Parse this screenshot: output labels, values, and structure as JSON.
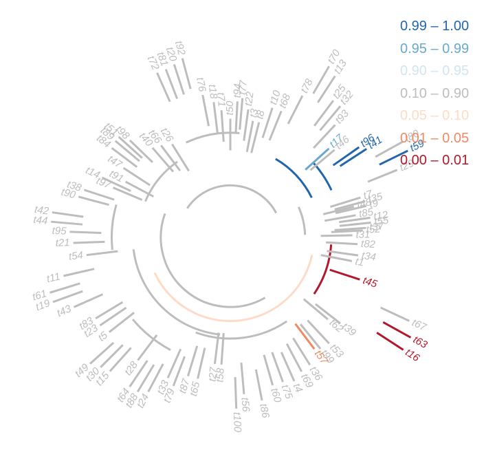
{
  "colors": {
    "c1": "#2166ac",
    "c2": "#67a9cf",
    "c3": "#d1e5f0",
    "c4": "#bdbdbd",
    "c5": "#fddbc7",
    "c6": "#ef8a62",
    "c7": "#b2182b"
  },
  "legend": [
    {
      "label": "0.99 – 1.00",
      "color": "#2166ac"
    },
    {
      "label": "0.95 – 0.99",
      "color": "#67a9cf"
    },
    {
      "label": "0.90 – 0.95",
      "color": "#d1e5f0"
    },
    {
      "label": "0.10 – 0.90",
      "color": "#bdbdbd"
    },
    {
      "label": "0.05 – 0.10",
      "color": "#fddbc7"
    },
    {
      "label": "0.01 – 0.05",
      "color": "#ef8a62"
    },
    {
      "label": "0.00 – 0.01",
      "color": "#b2182b"
    }
  ],
  "tips": [
    {
      "id": "t82",
      "angle": 3,
      "depth": 0.55,
      "color": "c4"
    },
    {
      "id": "t34",
      "angle": 8,
      "depth": 0.56,
      "color": "c4"
    },
    {
      "id": "t1",
      "angle": 11,
      "depth": 0.53,
      "color": "c4"
    },
    {
      "id": "t45",
      "angle": 18,
      "depth": 0.6,
      "color": "c7"
    },
    {
      "id": "t67",
      "angle": 25,
      "depth": 0.95,
      "color": "c4"
    },
    {
      "id": "t63",
      "angle": 29,
      "depth": 1.0,
      "color": "c7"
    },
    {
      "id": "t16",
      "angle": 33,
      "depth": 1.0,
      "color": "c7"
    },
    {
      "id": "t62",
      "angle": 40,
      "depth": 0.55,
      "color": "c4"
    },
    {
      "id": "t39",
      "angle": 38,
      "depth": 0.62,
      "color": "c4"
    },
    {
      "id": "t53",
      "angle": 47,
      "depth": 0.65,
      "color": "c4"
    },
    {
      "id": "t99",
      "angle": 51,
      "depth": 0.64,
      "color": "c4"
    },
    {
      "id": "t57",
      "angle": 53,
      "depth": 0.62,
      "color": "c6"
    },
    {
      "id": "t36",
      "angle": 58,
      "depth": 0.68,
      "color": "c4"
    },
    {
      "id": "t69",
      "angle": 62,
      "depth": 0.69,
      "color": "c4"
    },
    {
      "id": "t4",
      "angle": 66,
      "depth": 0.72,
      "color": "c4"
    },
    {
      "id": "t75",
      "angle": 70,
      "depth": 0.7,
      "color": "c4"
    },
    {
      "id": "t60",
      "angle": 74,
      "depth": 0.7,
      "color": "c4"
    },
    {
      "id": "t86",
      "angle": 79,
      "depth": 0.77,
      "color": "c4"
    },
    {
      "id": "t56",
      "angle": 85,
      "depth": 0.72,
      "color": "c4"
    },
    {
      "id": "t100",
      "angle": 88,
      "depth": 0.8,
      "color": "c4"
    },
    {
      "id": "t58",
      "angle": 94,
      "depth": 0.55,
      "color": "c4"
    },
    {
      "id": "t27",
      "angle": 97,
      "depth": 0.55,
      "color": "c4"
    },
    {
      "id": "t65",
      "angle": 103,
      "depth": 0.65,
      "color": "c4"
    },
    {
      "id": "t87",
      "angle": 107,
      "depth": 0.65,
      "color": "c4"
    },
    {
      "id": "t79",
      "angle": 111,
      "depth": 0.73,
      "color": "c4"
    },
    {
      "id": "t33",
      "angle": 114,
      "depth": 0.7,
      "color": "c4"
    },
    {
      "id": "t24",
      "angle": 118,
      "depth": 0.82,
      "color": "c4"
    },
    {
      "id": "t88",
      "angle": 121,
      "depth": 0.85,
      "color": "c4"
    },
    {
      "id": "t64",
      "angle": 124,
      "depth": 0.85,
      "color": "c4"
    },
    {
      "id": "t28",
      "angle": 127,
      "depth": 0.7,
      "color": "c4"
    },
    {
      "id": "t15",
      "angle": 132,
      "depth": 0.85,
      "color": "c4"
    },
    {
      "id": "t30",
      "angle": 135,
      "depth": 0.87,
      "color": "c4"
    },
    {
      "id": "t49",
      "angle": 138,
      "depth": 0.9,
      "color": "c4"
    },
    {
      "id": "t5",
      "angle": 142,
      "depth": 0.7,
      "color": "c4"
    },
    {
      "id": "t23",
      "angle": 146,
      "depth": 0.72,
      "color": "c4"
    },
    {
      "id": "t83",
      "angle": 149,
      "depth": 0.72,
      "color": "c4"
    },
    {
      "id": "t43",
      "angle": 156,
      "depth": 0.8,
      "color": "c4"
    },
    {
      "id": "t19",
      "angle": 160,
      "depth": 0.9,
      "color": "c4"
    },
    {
      "id": "t61",
      "angle": 163,
      "depth": 0.9,
      "color": "c4"
    },
    {
      "id": "t11",
      "angle": 167,
      "depth": 0.8,
      "color": "c4"
    },
    {
      "id": "t54",
      "angle": 173,
      "depth": 0.65,
      "color": "c4"
    },
    {
      "id": "t21",
      "angle": 178,
      "depth": 0.72,
      "color": "c4"
    },
    {
      "id": "t95",
      "angle": 182,
      "depth": 0.74,
      "color": "c4"
    },
    {
      "id": "t44",
      "angle": 185,
      "depth": 0.85,
      "color": "c4"
    },
    {
      "id": "t42",
      "angle": 188,
      "depth": 0.85,
      "color": "c4"
    },
    {
      "id": "t90",
      "angle": 195,
      "depth": 0.72,
      "color": "c4"
    },
    {
      "id": "t38",
      "angle": 198,
      "depth": 0.7,
      "color": "c4"
    },
    {
      "id": "t97",
      "angle": 203,
      "depth": 0.55,
      "color": "c4"
    },
    {
      "id": "t14",
      "angle": 205,
      "depth": 0.63,
      "color": "c4"
    },
    {
      "id": "t91",
      "angle": 208,
      "depth": 0.5,
      "color": "c4"
    },
    {
      "id": "t47",
      "angle": 213,
      "depth": 0.55,
      "color": "c4"
    },
    {
      "id": "t84",
      "angle": 217,
      "depth": 0.67,
      "color": "c4"
    },
    {
      "id": "t89",
      "angle": 220,
      "depth": 0.68,
      "color": "c4"
    },
    {
      "id": "t51",
      "angle": 222,
      "depth": 0.68,
      "color": "c4"
    },
    {
      "id": "t98",
      "angle": 224,
      "depth": 0.62,
      "color": "c4"
    },
    {
      "id": "t40",
      "angle": 229,
      "depth": 0.5,
      "color": "c4"
    },
    {
      "id": "t66",
      "angle": 233,
      "depth": 0.48,
      "color": "c4"
    },
    {
      "id": "t26",
      "angle": 238,
      "depth": 0.45,
      "color": "c4"
    },
    {
      "id": "t72",
      "angle": 246,
      "depth": 0.85,
      "color": "c4"
    },
    {
      "id": "t81",
      "angle": 249,
      "depth": 0.85,
      "color": "c4"
    },
    {
      "id": "t20",
      "angle": 252,
      "depth": 0.86,
      "color": "c4"
    },
    {
      "id": "t92",
      "angle": 255,
      "depth": 0.88,
      "color": "c4"
    },
    {
      "id": "t76",
      "angle": 259,
      "depth": 0.65,
      "color": "c4"
    },
    {
      "id": "t18",
      "angle": 263,
      "depth": 0.6,
      "color": "c4"
    },
    {
      "id": "t71",
      "angle": 266,
      "depth": 0.55,
      "color": "c4"
    },
    {
      "id": "t50",
      "angle": 270,
      "depth": 0.5,
      "color": "c4"
    },
    {
      "id": "t94",
      "angle": 273,
      "depth": 0.6,
      "color": "c4"
    },
    {
      "id": "t77",
      "angle": 275,
      "depth": 0.62,
      "color": "c4"
    },
    {
      "id": "t22",
      "angle": 278,
      "depth": 0.56,
      "color": "c4"
    },
    {
      "id": "t3",
      "angle": 281,
      "depth": 0.5,
      "color": "c4"
    },
    {
      "id": "t8",
      "angle": 284,
      "depth": 0.5,
      "color": "c4"
    },
    {
      "id": "t10",
      "angle": 288,
      "depth": 0.6,
      "color": "c4"
    },
    {
      "id": "t68",
      "angle": 292,
      "depth": 0.6,
      "color": "c4"
    },
    {
      "id": "t78",
      "angle": 297,
      "depth": 0.73,
      "color": "c4"
    },
    {
      "id": "t70",
      "angle": 300,
      "depth": 0.95,
      "color": "c4"
    },
    {
      "id": "t13",
      "angle": 303,
      "depth": 0.92,
      "color": "c4"
    },
    {
      "id": "t25",
      "angle": 307,
      "depth": 0.8,
      "color": "c4"
    },
    {
      "id": "t32",
      "angle": 310,
      "depth": 0.8,
      "color": "c4"
    },
    {
      "id": "t93",
      "angle": 313,
      "depth": 0.7,
      "color": "c4"
    },
    {
      "id": "t17",
      "angle": 318,
      "depth": 0.58,
      "color": "c2"
    },
    {
      "id": "t46",
      "angle": 320,
      "depth": 0.6,
      "color": "c4"
    },
    {
      "id": "t96",
      "angle": 325,
      "depth": 0.72,
      "color": "c1"
    },
    {
      "id": "t41",
      "angle": 327,
      "depth": 0.75,
      "color": "c1"
    },
    {
      "id": "t80",
      "angle": 331,
      "depth": 0.95,
      "color": "c4"
    },
    {
      "id": "t59",
      "angle": 334,
      "depth": 0.95,
      "color": "c1"
    },
    {
      "id": "t29",
      "angle": 338,
      "depth": 0.85,
      "color": "c4"
    },
    {
      "id": "t7",
      "angle": 343,
      "depth": 0.6,
      "color": "c4"
    },
    {
      "id": "t35",
      "angle": 345,
      "depth": 0.62,
      "color": "c4"
    },
    {
      "id": "t48",
      "angle": 346,
      "depth": 0.55,
      "color": "c4"
    },
    {
      "id": "t9",
      "angle": 347,
      "depth": 0.62,
      "color": "c4"
    },
    {
      "id": "t85",
      "angle": 350,
      "depth": 0.55,
      "color": "c4"
    },
    {
      "id": "t12",
      "angle": 352,
      "depth": 0.63,
      "color": "c4"
    },
    {
      "id": "t55",
      "angle": 354,
      "depth": 0.63,
      "color": "c4"
    },
    {
      "id": "t37",
      "angle": 356,
      "depth": 0.6,
      "color": "c4"
    },
    {
      "id": "t52",
      "angle": 357,
      "depth": 0.58,
      "color": "c4"
    },
    {
      "id": "t31",
      "angle": 359,
      "depth": 0.52,
      "color": "c4"
    }
  ],
  "arcs": [
    {
      "from": 214,
      "to": 332,
      "depth": 0.12,
      "color": "c4"
    },
    {
      "from": 336,
      "to": 358,
      "depth": 0.25,
      "color": "c4"
    },
    {
      "from": 4,
      "to": 34,
      "depth": 0.4,
      "color": "c7"
    },
    {
      "from": 12,
      "to": 155,
      "depth": 0.3,
      "color": "c5"
    },
    {
      "from": 60,
      "to": 200,
      "depth": 0.22,
      "color": "c4"
    },
    {
      "from": 96,
      "to": 173,
      "depth": 0.38,
      "color": "c4"
    },
    {
      "from": 56,
      "to": 110,
      "depth": 0.4,
      "color": "c4"
    },
    {
      "from": 300,
      "to": 334,
      "depth": 0.34,
      "color": "c1"
    },
    {
      "from": 318,
      "to": 335,
      "depth": 0.46,
      "color": "c1"
    },
    {
      "from": 245,
      "to": 275,
      "depth": 0.42,
      "color": "c4"
    },
    {
      "from": 203,
      "to": 235,
      "depth": 0.35,
      "color": "c4"
    },
    {
      "from": 118,
      "to": 140,
      "depth": 0.55,
      "color": "c4"
    },
    {
      "from": 174,
      "to": 196,
      "depth": 0.5,
      "color": "c4"
    }
  ]
}
